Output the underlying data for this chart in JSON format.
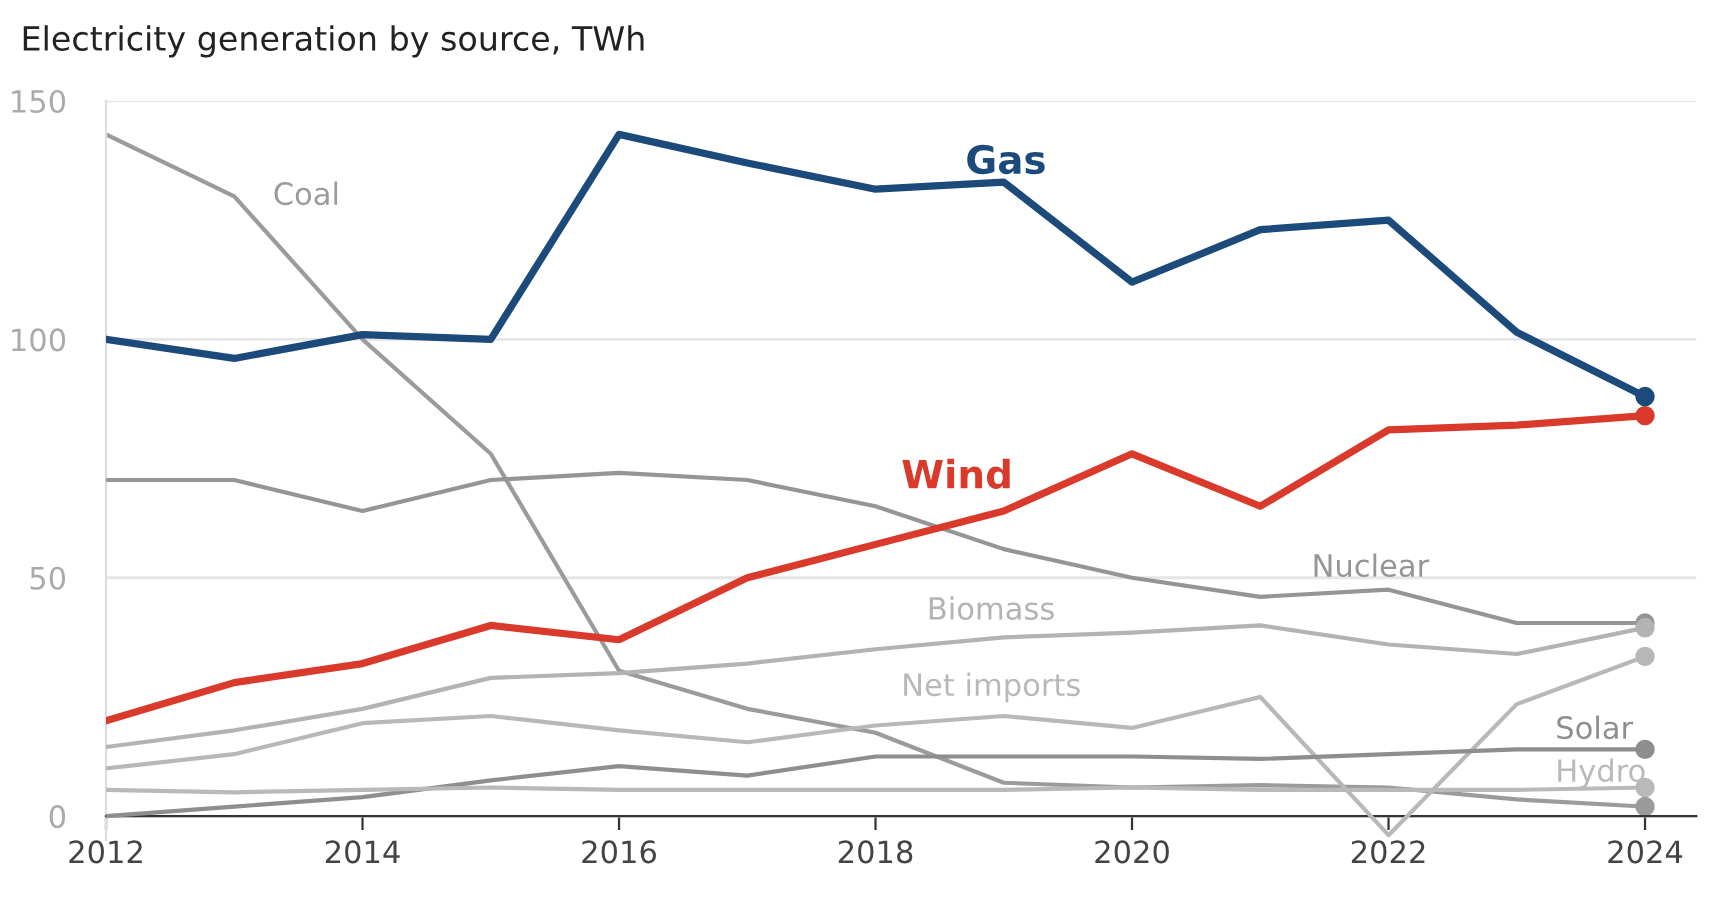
{
  "chart_data": {
    "type": "line",
    "title": "Electricity generation by source, TWh",
    "x": [
      2012,
      2013,
      2014,
      2015,
      2016,
      2017,
      2018,
      2019,
      2020,
      2021,
      2022,
      2023,
      2024
    ],
    "xlim": [
      2012,
      2024.4
    ],
    "xticks": [
      2012,
      2014,
      2016,
      2018,
      2020,
      2022,
      2024
    ],
    "ylim": [
      -5,
      150
    ],
    "yticks": [
      0,
      50,
      100,
      150
    ],
    "grid": "y",
    "legend": false,
    "series": [
      {
        "name": "Coal",
        "color": "#9b9b9b",
        "values": [
          143,
          130,
          100,
          76,
          30.5,
          22.5,
          17.5,
          7,
          6,
          6.5,
          6,
          3.5,
          2
        ]
      },
      {
        "name": "Nuclear",
        "color": "#959595",
        "values": [
          70.5,
          70.5,
          64,
          70.5,
          72,
          70.5,
          65,
          56,
          50,
          46,
          47.5,
          40.5,
          40.5
        ]
      },
      {
        "name": "Biomass",
        "color": "#b3b3b3",
        "values": [
          14.5,
          18,
          22.5,
          29,
          30,
          32,
          35,
          37.5,
          38.5,
          40,
          36,
          34,
          39.5
        ]
      },
      {
        "name": "Net imports",
        "color": "#b8b8b8",
        "values": [
          10,
          13,
          19.5,
          21,
          18,
          15.5,
          19,
          21,
          18.5,
          25,
          -4,
          23.5,
          33.5
        ]
      },
      {
        "name": "Solar",
        "color": "#8e8e8e",
        "values": [
          0,
          2,
          4,
          7.5,
          10.5,
          8.5,
          12.5,
          12.5,
          12.5,
          12,
          13,
          14,
          14
        ]
      },
      {
        "name": "Hydro",
        "color": "#b9b9b9",
        "values": [
          5.5,
          5,
          5.5,
          6,
          5.5,
          5.5,
          5.5,
          5.5,
          6,
          5.5,
          5.5,
          5.5,
          6
        ]
      },
      {
        "name": "Wind",
        "color": "#d93a2b",
        "values": [
          20,
          28,
          32,
          40,
          37,
          50,
          57,
          64,
          76,
          65,
          81,
          82,
          84
        ]
      },
      {
        "name": "Gas",
        "color": "#1c4a7a",
        "values": [
          100,
          96,
          101,
          100,
          143,
          137,
          131.5,
          133,
          112,
          123,
          125,
          101.5,
          88
        ]
      }
    ]
  }
}
